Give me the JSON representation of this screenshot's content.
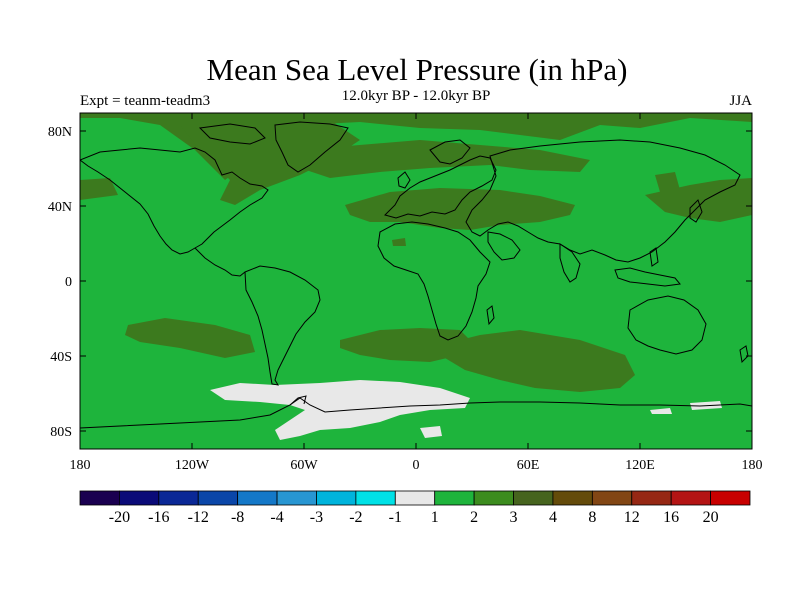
{
  "title": "Mean Sea Level Pressure (in hPa)",
  "subtitle": "12.0kyr BP - 12.0kyr BP",
  "left_label": "Expt = teanm-teadm3",
  "right_label": "JJA",
  "axes": {
    "lat_ticks": [
      "80N",
      "40N",
      "0",
      "40S",
      "80S"
    ],
    "lon_ticks": [
      "180",
      "120W",
      "60W",
      "0",
      "60E",
      "120E",
      "180"
    ]
  },
  "colorbar": {
    "colors": [
      "#1a0050",
      "#0a0a78",
      "#0a2896",
      "#0a46a8",
      "#1478c8",
      "#2896d2",
      "#00b4dc",
      "#00e1e6",
      "#e8e8e8",
      "#1eb43c",
      "#3c8c1e",
      "#46641e",
      "#644b0a",
      "#824614",
      "#962814",
      "#b41414",
      "#c80000"
    ],
    "labels": [
      "-20",
      "-16",
      "-12",
      "-8",
      "-4",
      "-3",
      "-2",
      "-1",
      "1",
      "2",
      "3",
      "4",
      "8",
      "12",
      "16",
      "20"
    ]
  },
  "map": {
    "background_color": "#1eb43c",
    "positive_color": "#3c7a1e",
    "negative_color": "#e8e8e8",
    "coastline_color": "#000000"
  }
}
